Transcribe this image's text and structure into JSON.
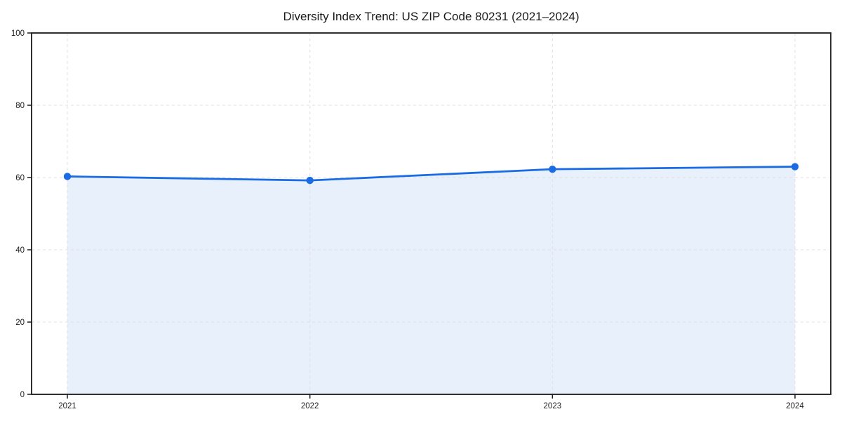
{
  "chart_data": {
    "type": "area",
    "title": "Diversity Index Trend: US ZIP Code 80231 (2021–2024)",
    "x": [
      "2021",
      "2022",
      "2023",
      "2024"
    ],
    "values": [
      60.3,
      59.2,
      62.3,
      63.0
    ],
    "xlabel": "",
    "ylabel": "",
    "ylim": [
      0,
      100
    ],
    "yticks": [
      0,
      20,
      40,
      60,
      80,
      100
    ],
    "grid": "dashed-both-axes",
    "legend": "none",
    "colors": {
      "line": "#1b6ce2",
      "marker": "#1b6ce2",
      "area_fill": "#1b6ce2",
      "area_fill_opacity": "0.10",
      "grid": "#e0e0e0",
      "axis": "#1a1a1a",
      "text": "#1a1a1a",
      "background": "#ffffff"
    }
  }
}
